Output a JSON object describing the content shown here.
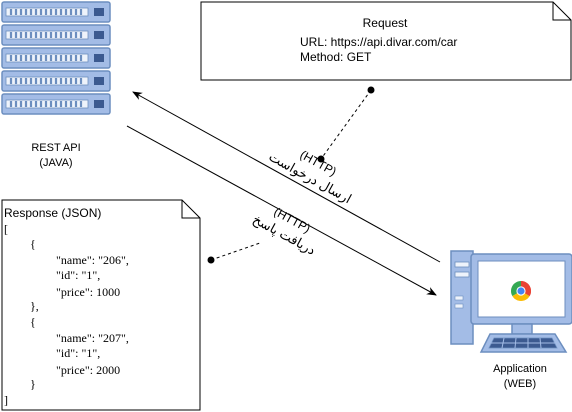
{
  "colors": {
    "server_fill": "#a3bce6",
    "server_stroke": "#6c8ebf",
    "server_dark": "#3c5a90",
    "server_light": "#eef3fb",
    "monitor_bezel": "#a3bce6",
    "monitor_outline": "#6c8ebf",
    "screen": "#ffffff",
    "line": "#000000",
    "chrome_red": "#ea4335",
    "chrome_yellow": "#fbbc05",
    "chrome_green": "#34a853",
    "chrome_blue": "#4285f4"
  },
  "server": {
    "icon": "server-rack-icon",
    "label_line1": "REST API",
    "label_line2": "(JAVA)"
  },
  "client": {
    "icon": "desktop-computer-icon",
    "browser_icon": "chrome-browser-icon",
    "label_line1": "Application",
    "label_line2": "(WEB)"
  },
  "request_note": {
    "title": "Request",
    "url": "URL: https://api.divar.com/car",
    "method": "Method: GET"
  },
  "response_note": {
    "title": "Response (JSON)",
    "lines": [
      "[",
      "{",
      "\"name\": \"206\",",
      "\"id\": \"1\",",
      "\"price\": 1000",
      "},",
      "{",
      "\"name\": \"207\",",
      "\"id\": \"1\",",
      "\"price\": 2000",
      "}",
      "]"
    ]
  },
  "arrows": {
    "request_label_line1": "(HTTP)",
    "request_label_line2": "ارسال درخواست",
    "response_label_line1": "(HTTP)",
    "response_label_line2": "دریافت پاسخ"
  }
}
